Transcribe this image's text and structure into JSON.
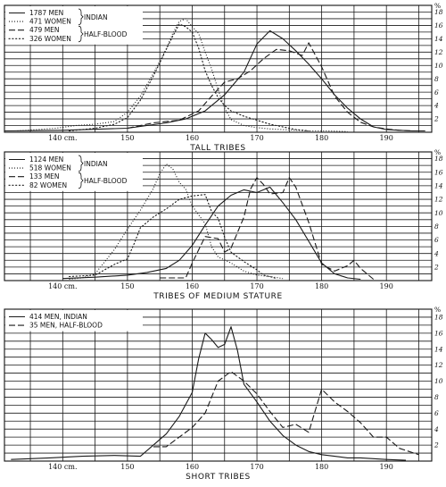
{
  "chart_data": [
    {
      "type": "line",
      "title": "TALL TRIBES",
      "xlabel": "",
      "ylabel": "",
      "y_unit": "%",
      "x_tick_labels": [
        "140 cm.",
        "150",
        "160",
        "170",
        "180",
        "190"
      ],
      "x_tick_values": [
        140,
        150,
        160,
        170,
        180,
        190
      ],
      "y_tick_labels": [
        "2",
        "4",
        "6",
        "8",
        "10",
        "12",
        "14",
        "16",
        "18"
      ],
      "xlim": [
        131,
        197
      ],
      "ylim": [
        0,
        19
      ],
      "grid": true,
      "legend_position": "top-left",
      "legend": {
        "groups": [
          {
            "label": "INDIAN",
            "entries": [
              {
                "text": "1787 MEN",
                "series": 0
              },
              {
                "text": "471 WOMEN",
                "series": 1
              }
            ]
          },
          {
            "label": "HALF-BLOOD",
            "entries": [
              {
                "text": "479 MEN",
                "series": 2
              },
              {
                "text": "326 WOMEN",
                "series": 3
              }
            ]
          }
        ]
      },
      "series": [
        {
          "name": "1787 MEN, INDIAN",
          "style": "solid",
          "x": [
            131,
            140,
            150,
            153,
            156,
            159,
            162,
            165,
            168,
            170,
            172,
            174,
            176,
            178,
            180,
            182,
            184,
            186,
            188,
            190,
            192,
            194,
            196
          ],
          "y": [
            0.2,
            0.3,
            0.6,
            1.0,
            1.4,
            2.0,
            3.2,
            5.6,
            9.0,
            13.2,
            15.2,
            14.0,
            12.2,
            10.2,
            8.0,
            5.6,
            3.6,
            2.0,
            0.8,
            0.4,
            0.3,
            0.2,
            0.2
          ]
        },
        {
          "name": "471 WOMEN, INDIAN",
          "style": "dotted",
          "x": [
            133,
            136,
            139,
            142,
            145,
            148,
            150,
            152,
            154,
            156,
            157,
            158,
            159,
            160,
            161,
            162,
            163,
            164,
            165,
            166,
            168,
            170,
            172,
            174,
            176,
            178,
            181,
            184
          ],
          "y": [
            0.2,
            0.4,
            0.6,
            1.0,
            1.2,
            1.6,
            3.0,
            5.4,
            8.8,
            12.5,
            14.8,
            16.6,
            17.0,
            15.8,
            14.8,
            12.0,
            9.5,
            6.4,
            3.6,
            1.9,
            1.0,
            0.7,
            0.5,
            0.4,
            0.3,
            0.2,
            0.2,
            0.1
          ]
        },
        {
          "name": "479 MEN, HALF-BLOOD",
          "style": "dashed",
          "x": [
            150,
            154,
            158,
            161,
            163,
            165,
            167,
            169,
            171,
            173,
            175,
            177,
            178,
            180,
            182,
            184,
            186,
            188,
            190,
            192,
            194
          ],
          "y": [
            0.6,
            1.4,
            1.8,
            3.2,
            5.4,
            7.5,
            8.0,
            9.2,
            11.0,
            12.4,
            12.2,
            11.5,
            13.4,
            9.8,
            5.4,
            3.0,
            1.5,
            0.8,
            0.5,
            0.3,
            0.2
          ]
        },
        {
          "name": "326 WOMEN, HALF-BLOOD",
          "style": "dotted-open",
          "x": [
            141,
            145,
            148,
            150,
            152,
            154,
            156,
            157,
            158,
            159,
            160,
            161,
            162,
            163,
            164,
            165,
            166,
            168,
            170,
            172,
            174,
            176,
            178
          ],
          "y": [
            0.2,
            0.6,
            1.2,
            2.2,
            4.8,
            8.4,
            12.4,
            14.4,
            16.2,
            15.8,
            15.0,
            12.6,
            9.2,
            7.0,
            5.2,
            4.0,
            3.2,
            2.4,
            1.8,
            1.2,
            0.8,
            0.4,
            0.2
          ]
        }
      ]
    },
    {
      "type": "line",
      "title": "TRIBES OF MEDIUM STATURE",
      "xlabel": "",
      "ylabel": "",
      "y_unit": "%",
      "x_tick_labels": [
        "140 cm.",
        "150",
        "160",
        "170",
        "180",
        "190"
      ],
      "x_tick_values": [
        140,
        150,
        160,
        170,
        180,
        190
      ],
      "y_tick_labels": [
        "2",
        "4",
        "6",
        "8",
        "10",
        "12",
        "14",
        "16",
        "18"
      ],
      "xlim": [
        131,
        197
      ],
      "ylim": [
        0,
        19
      ],
      "grid": true,
      "legend_position": "top-left",
      "legend": {
        "groups": [
          {
            "label": "INDIAN",
            "entries": [
              {
                "text": "1124 MEN",
                "series": 0
              },
              {
                "text": "518 WOMEN",
                "series": 1
              }
            ]
          },
          {
            "label": "HALF-BLOOD",
            "entries": [
              {
                "text": "133 MEN",
                "series": 2
              },
              {
                "text": "82 WOMEN",
                "series": 3
              }
            ]
          }
        ]
      },
      "series": [
        {
          "name": "1124 MEN, INDIAN",
          "style": "solid",
          "x": [
            140,
            145,
            150,
            153,
            156,
            158,
            160,
            162,
            164,
            166,
            168,
            170,
            172,
            174,
            176,
            178,
            180,
            182,
            184,
            186
          ],
          "y": [
            0.3,
            0.5,
            0.8,
            1.2,
            1.8,
            3.0,
            5.2,
            8.2,
            11.0,
            12.6,
            13.4,
            13.0,
            13.8,
            11.5,
            9.0,
            5.8,
            2.6,
            1.0,
            0.4,
            0.2
          ]
        },
        {
          "name": "518 WOMEN, INDIAN",
          "style": "dotted",
          "x": [
            141,
            143,
            145,
            146,
            148,
            150,
            152,
            154,
            155,
            156,
            157,
            158,
            159,
            160,
            162,
            163,
            164,
            166,
            168,
            170,
            172,
            174
          ],
          "y": [
            0.2,
            0.4,
            1.0,
            2.2,
            4.6,
            7.6,
            10.4,
            13.6,
            15.8,
            17.2,
            16.5,
            14.5,
            13.5,
            11.0,
            8.4,
            5.0,
            3.5,
            2.6,
            1.4,
            0.8,
            0.6,
            0.3
          ]
        },
        {
          "name": "133 MEN, HALF-BLOOD",
          "style": "dashed",
          "x": [
            155,
            159,
            160,
            162,
            164,
            165,
            166,
            168,
            169,
            170,
            171,
            172,
            174,
            175,
            176,
            178,
            180,
            182,
            184,
            185,
            186,
            188
          ],
          "y": [
            0.4,
            0.4,
            2.6,
            6.5,
            6.2,
            4.2,
            4.8,
            9.4,
            13.5,
            15.2,
            14.2,
            12.8,
            13.0,
            15.2,
            13.8,
            8.6,
            2.4,
            1.4,
            2.2,
            3.0,
            1.8,
            0.2
          ]
        },
        {
          "name": "82 WOMEN, HALF-BLOOD",
          "style": "dotted-open",
          "x": [
            141,
            145,
            148,
            150,
            151,
            152,
            154,
            156,
            158,
            160,
            162,
            163,
            164,
            165,
            166,
            168,
            170,
            171,
            172,
            173
          ],
          "y": [
            0.6,
            0.8,
            2.4,
            3.2,
            5.4,
            7.8,
            9.4,
            10.6,
            12.0,
            12.5,
            12.7,
            10.2,
            9.2,
            6.4,
            4.2,
            2.8,
            1.6,
            0.8,
            0.6,
            0.3
          ]
        }
      ]
    },
    {
      "type": "line",
      "title": "SHORT TRIBES",
      "xlabel": "",
      "ylabel": "",
      "y_unit": "%",
      "x_tick_labels": [
        "140 cm.",
        "150",
        "160",
        "170",
        "180",
        "190"
      ],
      "x_tick_values": [
        140,
        150,
        160,
        170,
        180,
        190
      ],
      "y_tick_labels": [
        "2",
        "4",
        "6",
        "8",
        "10",
        "12",
        "14",
        "16",
        "18"
      ],
      "xlim": [
        131,
        197
      ],
      "ylim": [
        0,
        19
      ],
      "grid": true,
      "legend_position": "top-left",
      "legend": {
        "groups": [
          {
            "label": "",
            "entries": [
              {
                "text": "414 MEN, INDIAN",
                "series": 0
              },
              {
                "text": "35 MEN, HALF-BLOOD",
                "series": 1
              }
            ]
          }
        ]
      },
      "series": [
        {
          "name": "414 MEN, INDIAN",
          "style": "solid",
          "x": [
            132,
            138,
            143,
            148,
            152,
            156,
            158,
            160,
            161,
            162,
            163,
            164,
            165,
            166,
            167,
            168,
            170,
            172,
            174,
            176,
            178,
            180,
            182,
            184,
            186,
            188,
            190,
            193
          ],
          "y": [
            0.2,
            0.4,
            0.6,
            0.7,
            0.6,
            3.4,
            5.6,
            8.6,
            12.8,
            16.0,
            15.2,
            14.2,
            14.6,
            16.8,
            13.8,
            9.6,
            7.4,
            5.0,
            3.2,
            2.0,
            1.2,
            0.8,
            0.6,
            0.4,
            0.4,
            0.3,
            0.2,
            0.1
          ]
        },
        {
          "name": "35 MEN, HALF-BLOOD",
          "style": "dashed",
          "x": [
            154,
            156,
            160,
            162,
            164,
            166,
            168,
            170,
            172,
            174,
            176,
            178,
            180,
            182,
            184,
            186,
            188,
            190,
            192,
            195
          ],
          "y": [
            1.8,
            1.8,
            4.2,
            6.0,
            10.0,
            11.2,
            10.0,
            8.4,
            6.2,
            4.2,
            4.6,
            3.6,
            9.0,
            7.4,
            6.2,
            4.8,
            3.0,
            3.0,
            1.6,
            0.8
          ]
        }
      ]
    }
  ]
}
